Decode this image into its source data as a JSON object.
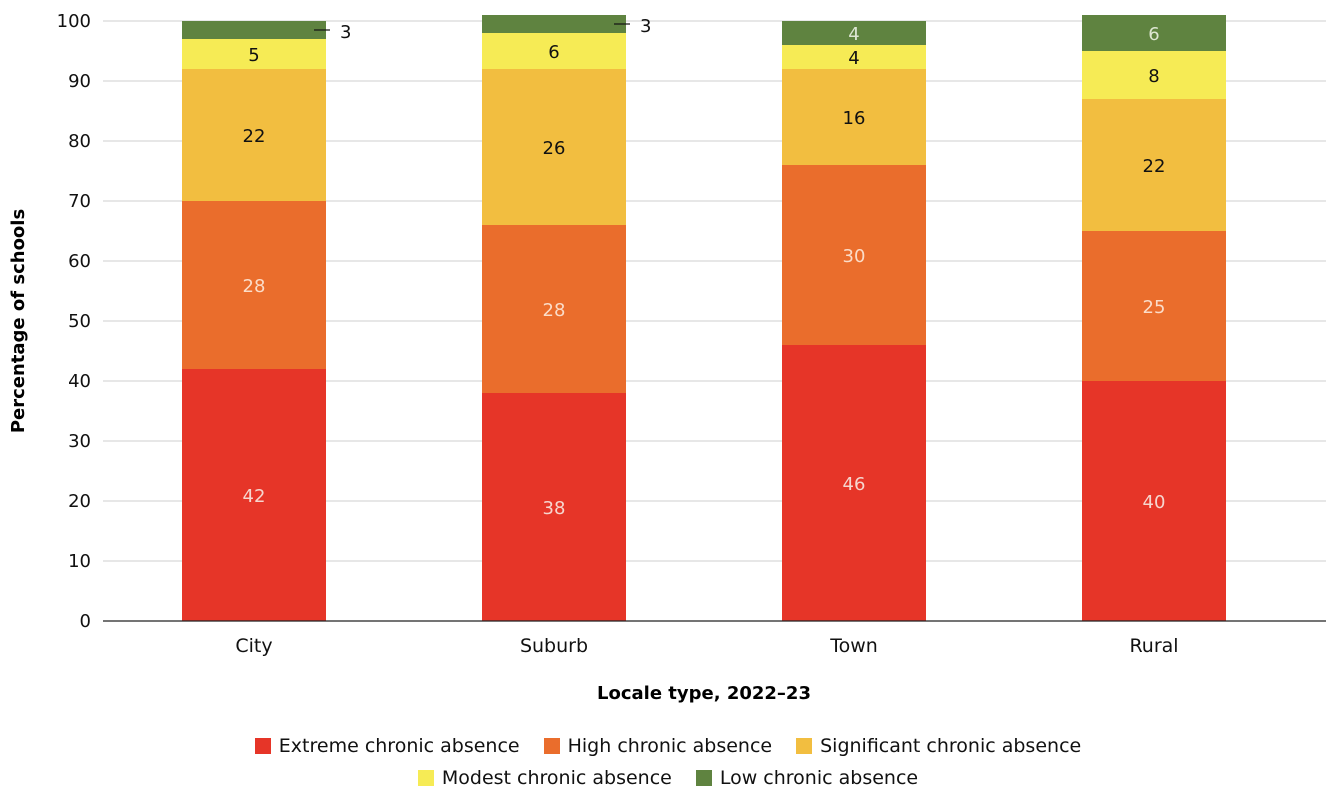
{
  "chart_data": {
    "type": "bar",
    "stacked": true,
    "categories": [
      "City",
      "Suburb",
      "Town",
      "Rural"
    ],
    "series": [
      {
        "name": "Extreme chronic absence",
        "color": "#E63528",
        "label_color": "#F6D6CF",
        "values": [
          42,
          38,
          46,
          40
        ],
        "data_labels": [
          "42",
          "38",
          "46",
          "40"
        ]
      },
      {
        "name": "High chronic absence",
        "color": "#EA6D2C",
        "label_color": "#FBDCC8",
        "values": [
          28,
          28,
          30,
          25
        ],
        "data_labels": [
          "28",
          "28",
          "30",
          "25"
        ]
      },
      {
        "name": "Significant chronic absence",
        "color": "#F2BE40",
        "label_color": "#111111",
        "values": [
          22,
          26,
          16,
          22
        ],
        "data_labels": [
          "22",
          "26",
          "16",
          "22"
        ]
      },
      {
        "name": "Modest chronic absence",
        "color": "#F6EB55",
        "label_color": "#111111",
        "values": [
          5,
          6,
          4,
          8
        ],
        "data_labels": [
          "5",
          "6",
          "4",
          "8"
        ]
      },
      {
        "name": "Low chronic absence",
        "color": "#5F8340",
        "label_color": "#DDE6D2",
        "values": [
          3,
          3,
          4,
          6
        ],
        "data_labels": [
          "3",
          "3",
          "4",
          "6"
        ],
        "outside_label": [
          true,
          true,
          false,
          false
        ]
      }
    ],
    "xlabel": "Locale type, 2022–23",
    "ylabel": "Percentage of schools",
    "ylim": [
      0,
      100
    ],
    "yticks": [
      "0",
      "10",
      "20",
      "30",
      "40",
      "50",
      "60",
      "70",
      "80",
      "90",
      "100"
    ],
    "grid": true,
    "legend_position": "bottom"
  }
}
